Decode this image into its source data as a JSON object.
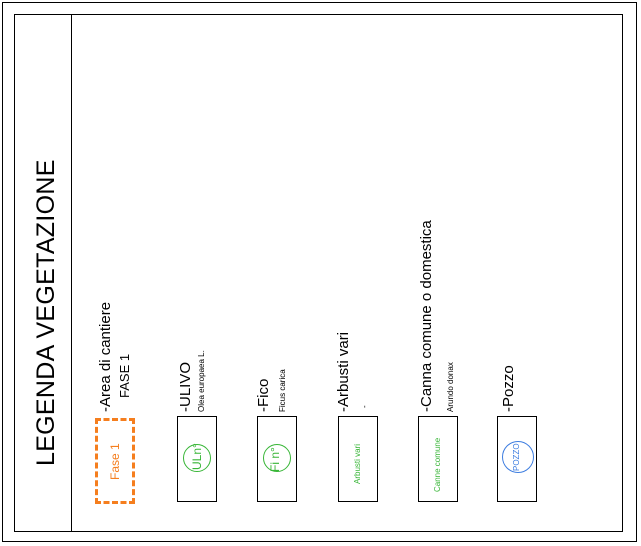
{
  "legend": {
    "title": "LEGENDA VEGETAZIONE",
    "colors": {
      "orange": "#f57e1e",
      "green": "#38b637",
      "blue": "#3d7de0"
    },
    "items": [
      {
        "label": "-Area di cantiere",
        "sub": "FASE 1",
        "symbol": "Fase 1"
      },
      {
        "label": "-ULIVO",
        "sub": "Olea europaea L.",
        "symbol": "ULn°"
      },
      {
        "label": "-Fico",
        "sub": "Ficus carica",
        "symbol": "Fi n°"
      },
      {
        "label": "-Arbusti vari",
        "sub": "-",
        "symbol": "Arbusti vari"
      },
      {
        "label": "-Canna comune o domestica",
        "sub": "Arundo donax",
        "symbol": "Canne comune"
      },
      {
        "label": "-Pozzo",
        "sub": "",
        "symbol": "POZZO"
      }
    ]
  }
}
